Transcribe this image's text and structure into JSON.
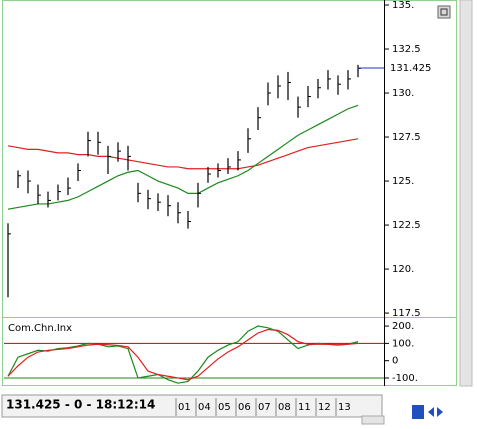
{
  "chart_data": [
    {
      "type": "ohlc",
      "categories": [
        null,
        null,
        null,
        null,
        null,
        null,
        null,
        null,
        null,
        null,
        null,
        null,
        null,
        null,
        null,
        null,
        null,
        "01",
        null,
        "04",
        null,
        "05",
        null,
        "06",
        null,
        "07",
        null,
        "08",
        null,
        "11",
        null,
        "12",
        null,
        "13",
        null,
        null
      ],
      "high": [
        122.6,
        125.6,
        125.6,
        124.8,
        124.4,
        124.8,
        125.2,
        126.0,
        127.8,
        127.8,
        127.0,
        127.2,
        127.0,
        124.9,
        124.5,
        124.3,
        124.2,
        123.8,
        123.3,
        124.9,
        125.8,
        126.0,
        126.3,
        126.7,
        128.0,
        129.2,
        130.6,
        131.0,
        131.2,
        129.8,
        130.4,
        130.8,
        131.3,
        131.0,
        131.3,
        131.6
      ],
      "low": [
        118.4,
        124.6,
        124.3,
        123.7,
        123.5,
        123.9,
        124.2,
        125.0,
        126.4,
        126.5,
        125.4,
        126.1,
        125.6,
        123.8,
        123.4,
        123.3,
        123.0,
        122.6,
        122.3,
        123.5,
        124.9,
        125.2,
        125.4,
        125.6,
        126.6,
        127.9,
        129.3,
        129.7,
        129.6,
        128.6,
        129.2,
        129.7,
        130.2,
        129.9,
        130.2,
        130.9
      ],
      "close": [
        122.0,
        125.3,
        125.0,
        124.2,
        123.9,
        124.4,
        124.6,
        125.6,
        127.3,
        127.2,
        126.4,
        126.7,
        126.4,
        124.3,
        124.0,
        123.8,
        123.6,
        123.2,
        122.7,
        124.3,
        125.4,
        125.6,
        125.8,
        126.2,
        127.4,
        128.6,
        130.0,
        130.4,
        130.6,
        129.2,
        129.8,
        130.3,
        130.8,
        130.5,
        130.8,
        131.4
      ],
      "color": "#000000",
      "lines": [
        {
          "color": "#e02020",
          "values": [
            127.0,
            126.9,
            126.8,
            126.8,
            126.7,
            126.6,
            126.6,
            126.5,
            126.5,
            126.4,
            126.4,
            126.3,
            126.2,
            126.1,
            126.0,
            125.9,
            125.8,
            125.8,
            125.7,
            125.7,
            125.7,
            125.7,
            125.7,
            125.7,
            125.8,
            125.9,
            126.1,
            126.3,
            126.5,
            126.7,
            126.9,
            127.0,
            127.1,
            127.2,
            127.3,
            127.4
          ]
        },
        {
          "color": "#1a8a1a",
          "values": [
            123.4,
            123.5,
            123.6,
            123.7,
            123.7,
            123.8,
            123.9,
            124.1,
            124.4,
            124.7,
            125.0,
            125.3,
            125.5,
            125.6,
            125.3,
            125.0,
            124.8,
            124.6,
            124.3,
            124.3,
            124.6,
            124.9,
            125.1,
            125.3,
            125.6,
            126.0,
            126.4,
            126.8,
            127.2,
            127.6,
            127.9,
            128.2,
            128.5,
            128.8,
            129.1,
            129.3
          ]
        }
      ],
      "last_value": 131.425,
      "last_color": "#2030c0",
      "ylim": [
        117.39,
        134.83
      ],
      "yticks": [
        {
          "value": 135,
          "label": "135."
        },
        132.5,
        {
          "value": 130,
          "label": "130."
        },
        127.5,
        {
          "value": 125,
          "label": "125."
        },
        122.5,
        {
          "value": 120,
          "label": "120."
        },
        117.5
      ]
    },
    {
      "type": "line",
      "title": "Com.Chn.Inx",
      "series": [
        {
          "color": "#1a8a1a",
          "values": [
            -90,
            20,
            40,
            60,
            55,
            70,
            75,
            85,
            100,
            95,
            80,
            85,
            70,
            -100,
            -90,
            -80,
            -110,
            -130,
            -120,
            -60,
            20,
            60,
            90,
            110,
            170,
            200,
            190,
            170,
            120,
            70,
            90,
            100,
            95,
            90,
            95,
            110
          ]
        },
        {
          "color": "#e02020",
          "values": [
            -90,
            -30,
            20,
            50,
            60,
            65,
            70,
            80,
            90,
            95,
            92,
            88,
            80,
            20,
            -60,
            -80,
            -90,
            -100,
            -110,
            -90,
            -40,
            10,
            50,
            80,
            120,
            160,
            180,
            175,
            150,
            110,
            95,
            95,
            95,
            92,
            95,
            100
          ]
        }
      ],
      "levels": [
        {
          "value": 100,
          "color": "#a01010"
        },
        {
          "value": -100,
          "color": "#1a8a1a"
        }
      ],
      "ylim": [
        -129,
        235
      ],
      "yticks": [
        {
          "value": 200,
          "label": "200."
        },
        {
          "value": 100,
          "label": "100."
        },
        0,
        {
          "value": -100,
          "label": "-100."
        }
      ]
    }
  ],
  "status": "131.425 - 0 - 18:12:14"
}
